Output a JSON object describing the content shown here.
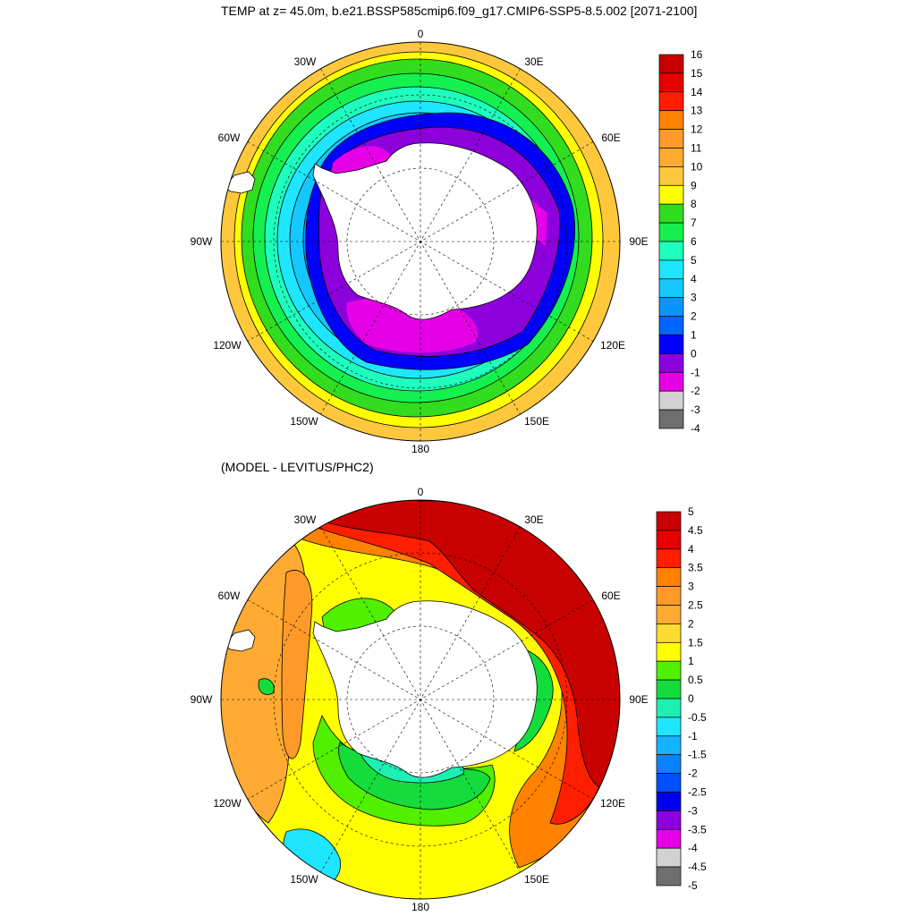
{
  "titles": {
    "top": "TEMP at z=  45.0m, b.e21.BSSP585cmip6.f09_g17.CMIP6-SSP5-8.5.002 [2071-2100]",
    "bottom": "(MODEL - LEVITUS/PHC2)"
  },
  "longitude_labels": [
    "0",
    "30E",
    "60E",
    "90E",
    "120E",
    "150E",
    "180",
    "150W",
    "120W",
    "90W",
    "60W",
    "30W"
  ],
  "top_colorbar": {
    "labels": [
      "16",
      "15",
      "14",
      "13",
      "12",
      "11",
      "10",
      "9",
      "8",
      "7",
      "6",
      "5",
      "4",
      "3",
      "2",
      "1",
      "0",
      "-1",
      "-2",
      "-3",
      "-4"
    ],
    "colors": [
      "#c80000",
      "#e60000",
      "#ff1e00",
      "#ff8200",
      "#ff9a28",
      "#ffaa32",
      "#ffc83c",
      "#ffff00",
      "#32dc1e",
      "#14f050",
      "#1effbe",
      "#1ee6ff",
      "#14c8ff",
      "#0a96ff",
      "#0064ff",
      "#0000ff",
      "#8c00dc",
      "#e600e6",
      "#d2d2d2",
      "#6e6e6e"
    ]
  },
  "bottom_colorbar": {
    "labels": [
      "5",
      "4.5",
      "4",
      "3.5",
      "3",
      "2.5",
      "2",
      "1.5",
      "1",
      "0.5",
      "0",
      "-0.5",
      "-1",
      "-1.5",
      "-2",
      "-2.5",
      "-3",
      "-3.5",
      "-4",
      "-4.5",
      "-5"
    ],
    "colors": [
      "#c80000",
      "#e60000",
      "#ff1e00",
      "#ff8200",
      "#ff9a28",
      "#ffaa32",
      "#ffdc32",
      "#ffff00",
      "#50f000",
      "#14dc3c",
      "#1ef0b4",
      "#1ee6ff",
      "#14b4ff",
      "#0a82ff",
      "#0050ff",
      "#0000f0",
      "#8c00dc",
      "#e600e6",
      "#d2d2d2",
      "#6e6e6e"
    ]
  }
}
